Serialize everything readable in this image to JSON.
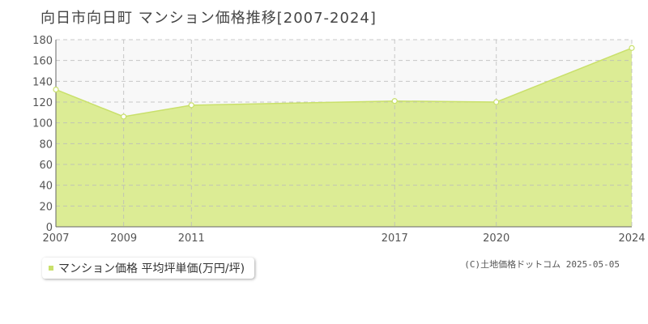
{
  "title": "向日市向日町 マンション価格推移[2007-2024]",
  "chart_data": {
    "type": "area",
    "x": [
      "2007",
      "2009",
      "2011",
      "2017",
      "2020",
      "2024"
    ],
    "series": [
      {
        "name": "マンション価格 平均坪単価(万円/坪)",
        "values": [
          132,
          106,
          117,
          121,
          120,
          172
        ]
      }
    ],
    "ylim": [
      0,
      180
    ],
    "yticks": [
      0,
      20,
      40,
      60,
      80,
      100,
      120,
      140,
      160,
      180
    ],
    "grid": true,
    "legend": "bottom-left",
    "colors": {
      "fill": "#dcec95",
      "line": "#c9e06b",
      "marker": "#ffffff",
      "upper_band": "#f8f8f8"
    }
  },
  "credit": "(C)土地価格ドットコム 2025-05-05"
}
